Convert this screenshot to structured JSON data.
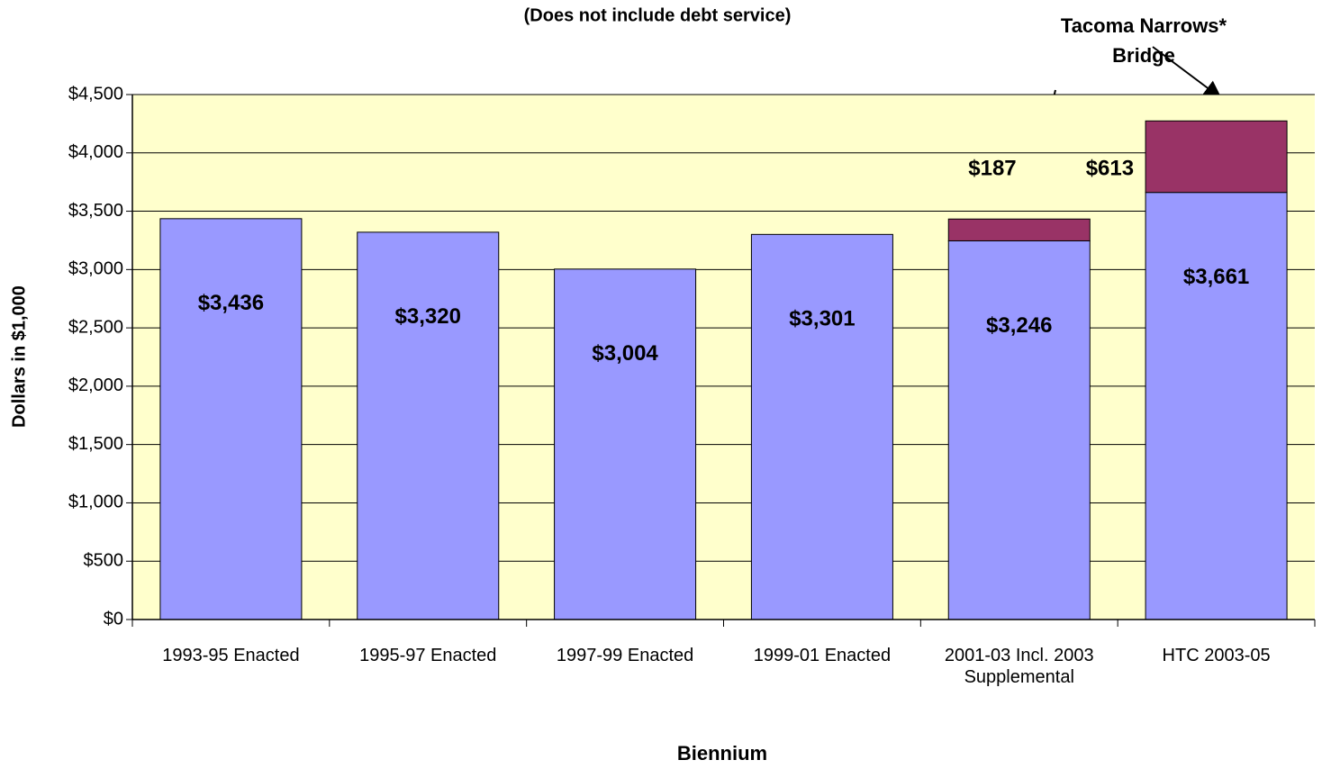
{
  "chart_data": {
    "type": "stacked_bar",
    "subtitle": "(Does not include debt service)",
    "y_label": "Dollars in $1,000",
    "x_label": "Biennium",
    "annotation": "Tacoma Narrows* Bridge",
    "categories": [
      "1993-95 Enacted",
      "1995-97 Enacted",
      "1997-99 Enacted",
      "1999-01 Enacted",
      "2001-03 Incl. 2003 Supplemental",
      "HTC 2003-05"
    ],
    "series": [
      {
        "color": "#9999ff",
        "values": [
          3436,
          3320,
          3004,
          3301,
          3246,
          3661
        ],
        "value_labels": [
          "$3,436",
          "$3,320",
          "$3,004",
          "$3,301",
          "$3,246",
          "$3,661"
        ]
      },
      {
        "color": "#993366",
        "values": [
          null,
          null,
          null,
          null,
          187,
          613
        ],
        "value_labels": [
          null,
          null,
          null,
          null,
          "$187",
          "$613"
        ]
      }
    ],
    "ylim": [
      0,
      4500
    ],
    "yticks": [
      {
        "value": 0,
        "label": "$0"
      },
      {
        "value": 500,
        "label": "$500"
      },
      {
        "value": 1000,
        "label": "$1,000"
      },
      {
        "value": 1500,
        "label": "$1,500"
      },
      {
        "value": 2000,
        "label": "$2,000"
      },
      {
        "value": 2500,
        "label": "$2,500"
      },
      {
        "value": 3000,
        "label": "$3,000"
      },
      {
        "value": 3500,
        "label": "$3,500"
      },
      {
        "value": 4000,
        "label": "$4,000"
      },
      {
        "value": 4500,
        "label": "$4,500"
      }
    ],
    "grid": true,
    "plot_background": "#ffffcc"
  }
}
